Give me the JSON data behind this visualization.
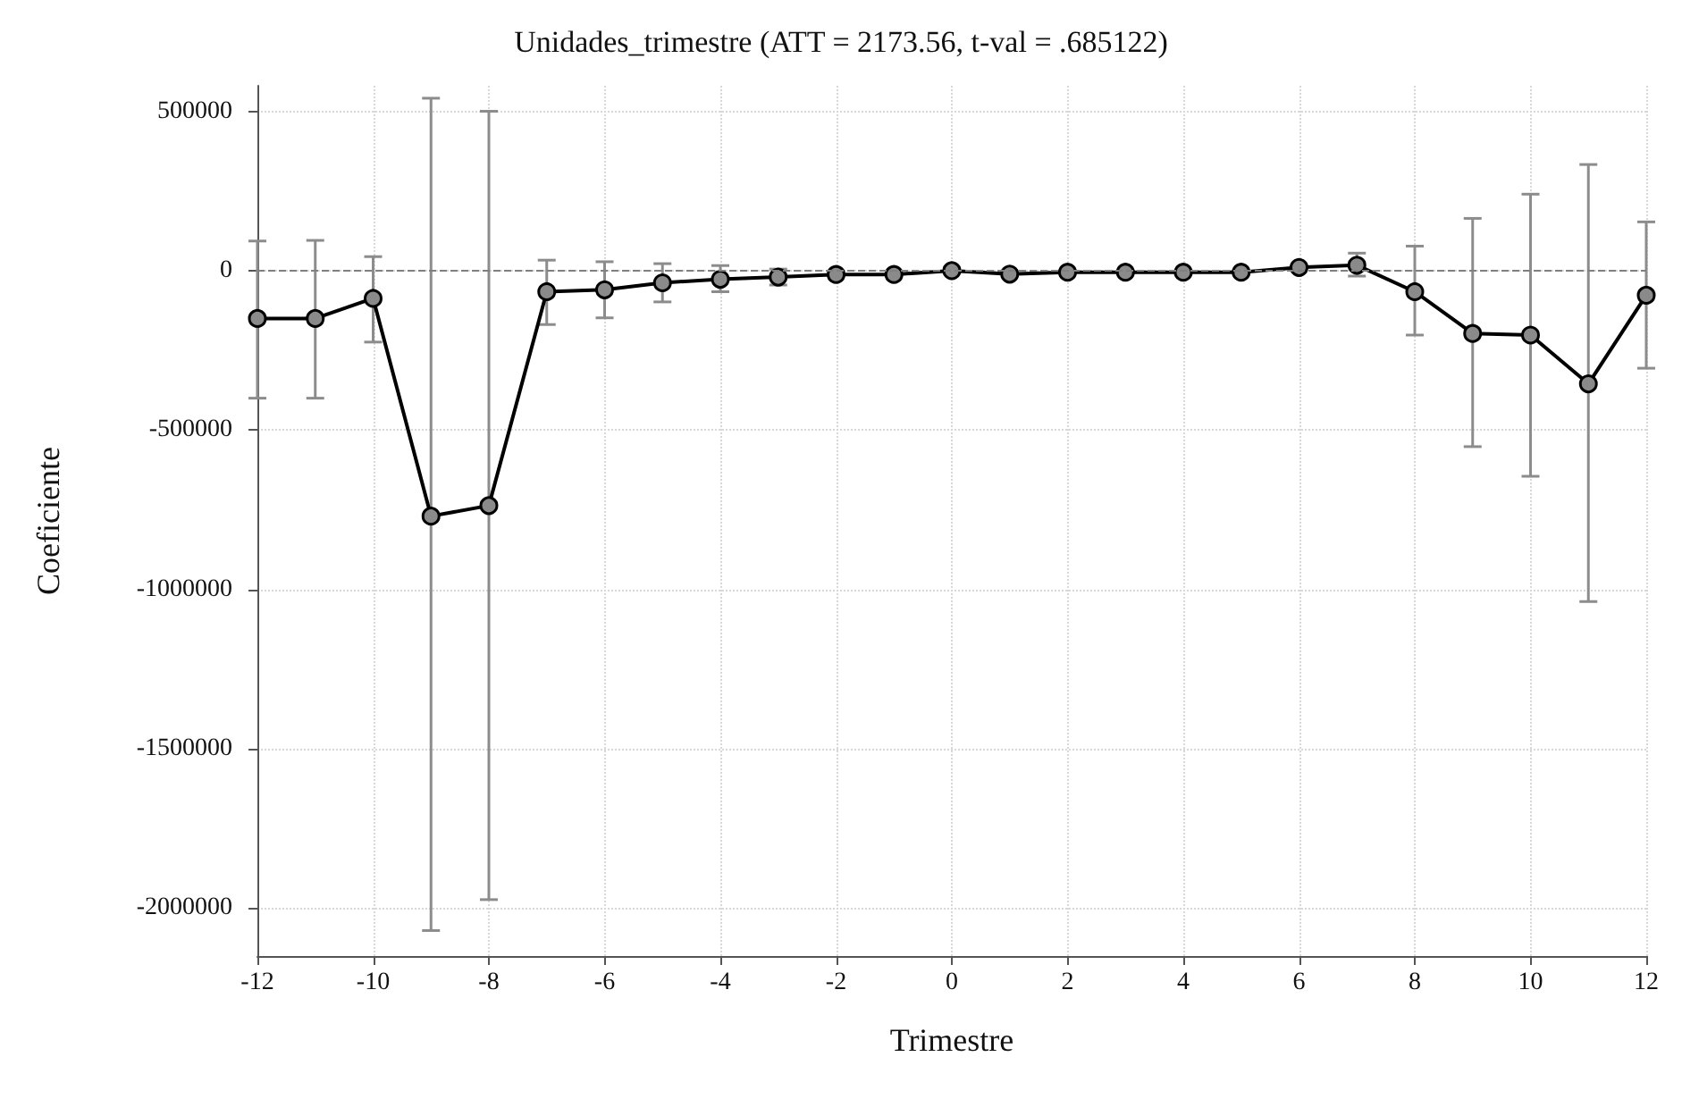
{
  "chart_data": {
    "type": "line",
    "title": "Unidades_trimestre (ATT = 2173.56, t-val = .685122)",
    "xlabel": "Trimestre",
    "ylabel": "Coeficiente",
    "x": [
      -12,
      -11,
      -10,
      -9,
      -8,
      -7,
      -6,
      -5,
      -4,
      -3,
      -2,
      -1,
      0,
      1,
      2,
      3,
      4,
      5,
      6,
      7,
      8,
      9,
      10,
      11,
      12
    ],
    "series": [
      {
        "color": "#000000",
        "values": [
          -150000,
          -150000,
          -87000,
          -770000,
          -737000,
          -66000,
          -60000,
          -38000,
          -27000,
          -20000,
          -12000,
          -12000,
          0,
          -11000,
          -5000,
          -5000,
          -5000,
          -5000,
          10000,
          17000,
          -66000,
          -197000,
          -202000,
          -355000,
          -77000
        ],
        "errors": [
          [
            -400000,
            93000
          ],
          [
            -400000,
            95000
          ],
          [
            -224000,
            44000
          ],
          [
            -2070000,
            541000
          ],
          [
            -1973000,
            500000
          ],
          [
            -169000,
            33000
          ],
          [
            -148000,
            28000
          ],
          [
            -98000,
            22000
          ],
          [
            -66000,
            16000
          ],
          [
            -45000,
            5000
          ],
          null,
          null,
          null,
          null,
          null,
          null,
          null,
          null,
          null,
          [
            -17000,
            55000
          ],
          [
            -202000,
            77000
          ],
          [
            -552000,
            164000
          ],
          [
            -645000,
            240000
          ],
          [
            -1038000,
            333000
          ],
          [
            -306000,
            153000
          ]
        ]
      }
    ],
    "xlim": [
      -12,
      12
    ],
    "xticks": [
      -12,
      -10,
      -8,
      -6,
      -4,
      -2,
      0,
      2,
      4,
      6,
      8,
      10,
      12
    ],
    "ylim": [
      -2150000,
      580000
    ],
    "yticks": [
      -2000000,
      -1500000,
      -1000000,
      -500000,
      0,
      500000
    ],
    "ref_lines": [
      {
        "axis": "y",
        "value": 0,
        "line_style": "dashed",
        "color": "#808080"
      }
    ],
    "grid": true,
    "marker": "circle",
    "line_style": "solid"
  }
}
